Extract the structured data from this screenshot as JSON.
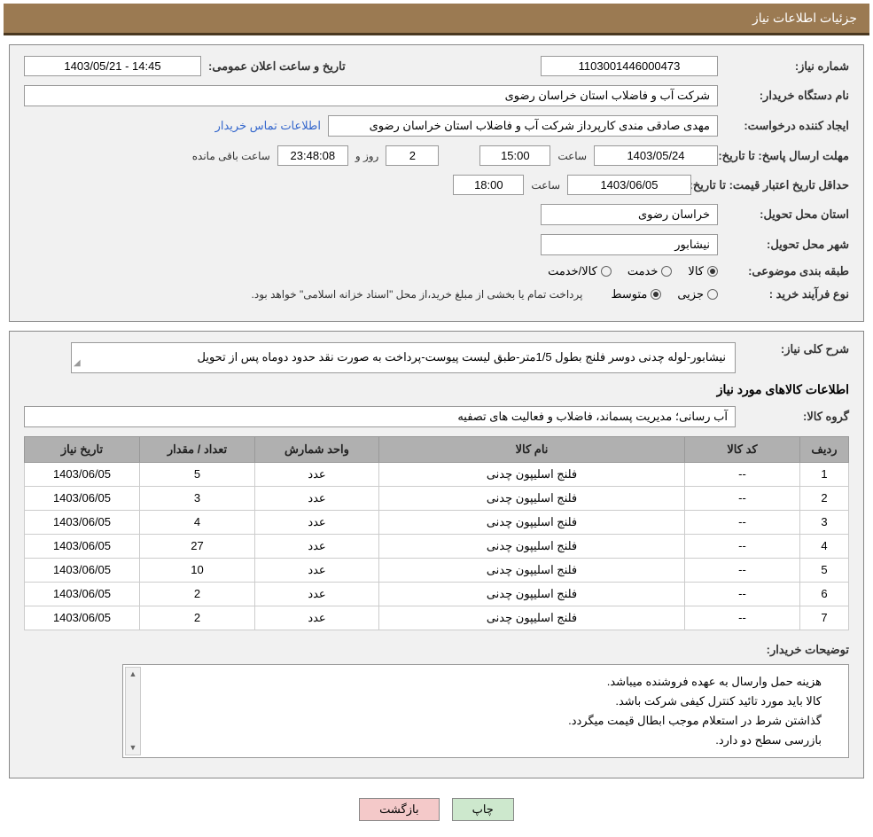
{
  "header": {
    "title": "جزئیات اطلاعات نیاز"
  },
  "form": {
    "need_number_label": "شماره نیاز:",
    "need_number": "1103001446000473",
    "announce_dt_label": "تاریخ و ساعت اعلان عمومی:",
    "announce_dt": "14:45 - 1403/05/21",
    "buyer_org_label": "نام دستگاه خریدار:",
    "buyer_org": "شرکت آب و فاضلاب استان خراسان رضوی",
    "requester_label": "ایجاد کننده درخواست:",
    "requester": "مهدی صادقی مندی کارپرداز شرکت آب و فاضلاب استان خراسان رضوی",
    "contact_link": "اطلاعات تماس خریدار",
    "response_deadline_label": "مهلت ارسال پاسخ:",
    "to_date_label": "تا تاریخ:",
    "response_date": "1403/05/24",
    "time_label": "ساعت",
    "response_time": "15:00",
    "days_value": "2",
    "days_and_label": "روز و",
    "countdown": "23:48:08",
    "remaining_label": "ساعت باقی مانده",
    "price_validity_label": "حداقل تاریخ اعتبار قیمت:",
    "price_date": "1403/06/05",
    "price_time": "18:00",
    "province_label": "استان محل تحویل:",
    "province": "خراسان رضوی",
    "city_label": "شهر محل تحویل:",
    "city": "نیشابور",
    "category_label": "طبقه بندی موضوعی:",
    "cat_goods": "کالا",
    "cat_service": "خدمت",
    "cat_goods_service": "کالا/خدمت",
    "process_type_label": "نوع فرآیند خرید :",
    "proc_partial": "جزیی",
    "proc_medium": "متوسط",
    "proc_note": "پرداخت تمام یا بخشی از مبلغ خرید،از محل \"اسناد خزانه اسلامی\" خواهد بود."
  },
  "description": {
    "label": "شرح کلی نیاز:",
    "text": "نیشابور-لوله چدنی دوسر فلنج بطول 1/5متر-طبق لیست پیوست-پرداخت به صورت نقد حدود دوماه پس از تحویل"
  },
  "goods_info": {
    "section_title": "اطلاعات کالاهای مورد نیاز",
    "group_label": "گروه کالا:",
    "group": "آب رسانی؛ مدیریت پسماند، فاضلاب و فعالیت های تصفیه"
  },
  "table": {
    "headers": {
      "row": "ردیف",
      "code": "کد کالا",
      "name": "نام کالا",
      "unit": "واحد شمارش",
      "qty": "تعداد / مقدار",
      "need_date": "تاریخ نیاز"
    },
    "rows": [
      {
        "row": "1",
        "code": "--",
        "name": "فلنج اسلیپون چدنی",
        "unit": "عدد",
        "qty": "5",
        "date": "1403/06/05"
      },
      {
        "row": "2",
        "code": "--",
        "name": "فلنج اسلیپون چدنی",
        "unit": "عدد",
        "qty": "3",
        "date": "1403/06/05"
      },
      {
        "row": "3",
        "code": "--",
        "name": "فلنج اسلیپون چدنی",
        "unit": "عدد",
        "qty": "4",
        "date": "1403/06/05"
      },
      {
        "row": "4",
        "code": "--",
        "name": "فلنج اسلیپون چدنی",
        "unit": "عدد",
        "qty": "27",
        "date": "1403/06/05"
      },
      {
        "row": "5",
        "code": "--",
        "name": "فلنج اسلیپون چدنی",
        "unit": "عدد",
        "qty": "10",
        "date": "1403/06/05"
      },
      {
        "row": "6",
        "code": "--",
        "name": "فلنج اسلیپون چدنی",
        "unit": "عدد",
        "qty": "2",
        "date": "1403/06/05"
      },
      {
        "row": "7",
        "code": "--",
        "name": "فلنج اسلیپون چدنی",
        "unit": "عدد",
        "qty": "2",
        "date": "1403/06/05"
      }
    ]
  },
  "buyer_notes": {
    "label": "توضیحات خریدار:",
    "line1": "هزینه حمل وارسال به عهده فروشنده میباشد.",
    "line2": "کالا باید مورد تائید کنترل کیفی شرکت باشد.",
    "line3": "گذاشتن شرط در استعلام موجب ابطال قیمت میگردد.",
    "line4": "بازرسی سطح دو دارد."
  },
  "buttons": {
    "print": "چاپ",
    "back": "بازگشت"
  },
  "colors": {
    "header_bg": "#9b7a52",
    "header_border": "#4a3820",
    "panel_bg": "#f1f1f1",
    "table_header_bg": "#b0b0b0",
    "link": "#3366cc",
    "btn_print": "#cde8cd",
    "btn_back": "#f4c9c9"
  }
}
